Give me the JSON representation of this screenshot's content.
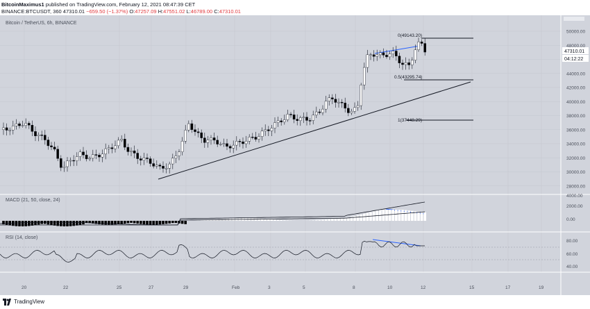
{
  "header": {
    "author": "BitcoinMaximus1",
    "published_text": "published on TradingView.com, February 12, 2021 08:47:39 CET",
    "symbol_line": "BINANCE:BTCUSDT, 360",
    "last": "47310.01",
    "change": "−659.50 (−1.37%)",
    "o_label": "O:",
    "o": "47257.09",
    "h_label": "H:",
    "h": "47551.02",
    "l_label": "L:",
    "l": "46789.00",
    "c_label": "C:",
    "c": "47310.01"
  },
  "chart": {
    "legend": "Bitcoin / TetherUS, 6h, BINANCE",
    "price_badge": "47310.01",
    "countdown_badge": "04:12:22",
    "price_axis": [
      "50000.00",
      "48000.00",
      "46000.00",
      "44000.00",
      "42000.00",
      "40000.00",
      "38000.00",
      "36000.00",
      "34000.00",
      "32000.00",
      "30000.00",
      "28000.00"
    ],
    "price_axis_values": [
      50000,
      48000,
      46000,
      44000,
      42000,
      40000,
      38000,
      36000,
      34000,
      32000,
      30000,
      28000
    ],
    "fib_levels": [
      {
        "label": "0(49143.20)",
        "value": 49143.2
      },
      {
        "label": "0.5(43295.74)",
        "value": 43295.74
      },
      {
        "label": "1(37448.29)",
        "value": 37448.29
      }
    ],
    "macd_label": "MACD (21, 50, close, 24)",
    "macd_axis": [
      "4000.00",
      "2000.00",
      "0.00"
    ],
    "rsi_label": "RSI (14, close)",
    "rsi_axis": [
      "80.00",
      "60.00",
      "40.00"
    ],
    "time_axis": [
      "20",
      "22",
      "25",
      "27",
      "29",
      "Feb",
      "3",
      "5",
      "8",
      "10",
      "12",
      "15",
      "17",
      "19"
    ],
    "colors": {
      "background": "#d1d4dc",
      "up_candle": "#ffffff",
      "down_candle": "#000000",
      "divergence_line": "#2962ff"
    }
  },
  "footer": {
    "brand": "TradingView",
    "logo_icon": "tradingview-logo-icon"
  }
}
